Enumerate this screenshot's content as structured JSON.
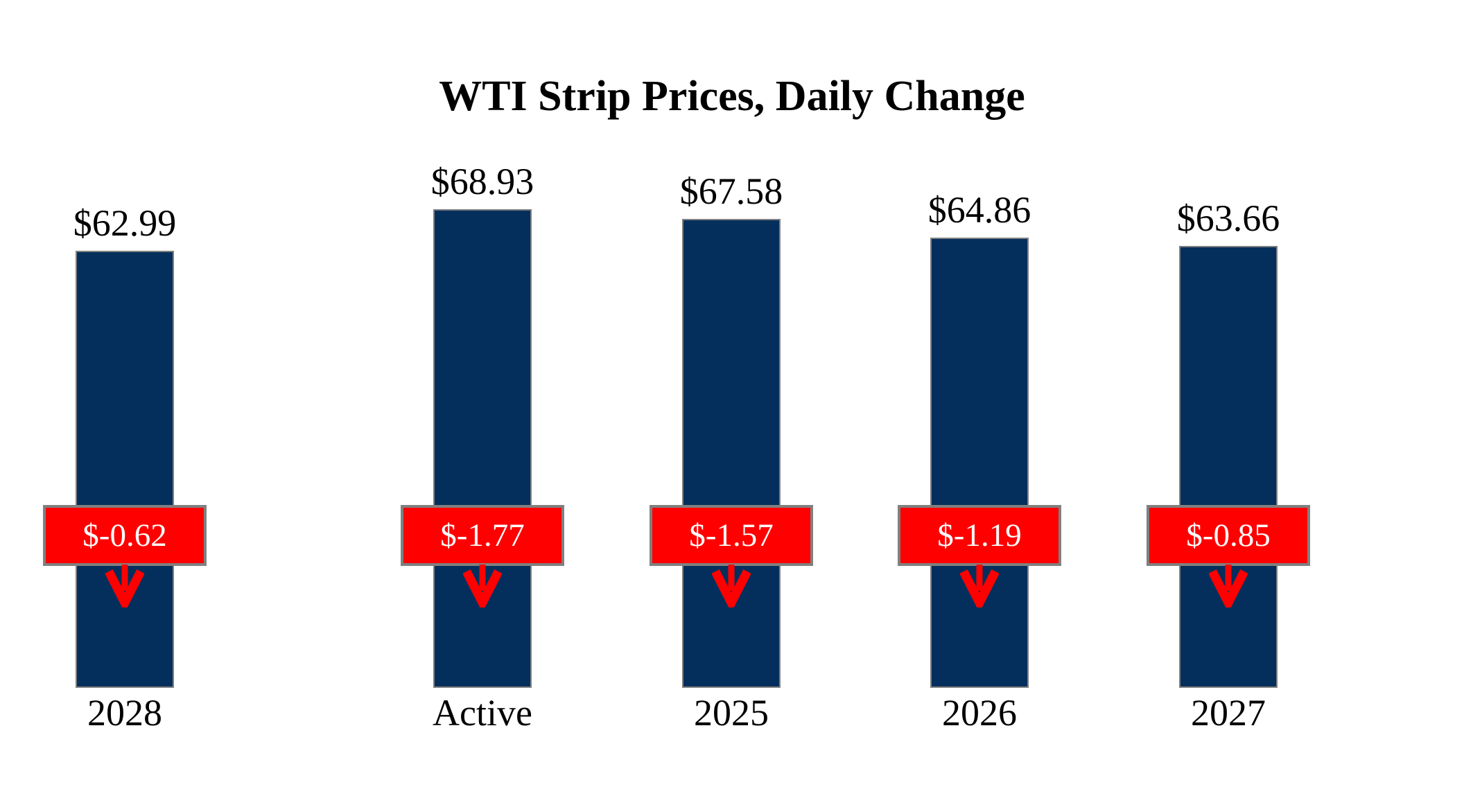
{
  "chart_data": {
    "type": "bar",
    "title": "WTI Strip Prices, Daily Change",
    "categories": [
      "Active",
      "2025",
      "2026",
      "2027",
      "2028"
    ],
    "series": [
      {
        "name": "Strip Price",
        "values": [
          68.93,
          67.58,
          64.86,
          63.66,
          62.99
        ]
      },
      {
        "name": "Daily Change",
        "values": [
          -1.77,
          -1.57,
          -1.19,
          -0.85,
          -0.62
        ]
      }
    ],
    "value_labels": [
      "$68.93",
      "$67.58",
      "$64.86",
      "$63.66",
      "$62.99"
    ],
    "change_labels": [
      "$-1.77",
      "$-1.57",
      "$-1.19",
      "$-0.85",
      "$-0.62"
    ],
    "ylim": [
      0,
      68.93
    ],
    "grid": false,
    "legend": false,
    "axes_shown": false,
    "colors": {
      "bar_fill": "#042F5C",
      "bar_border": "#808080",
      "badge_fill": "#FF0000",
      "badge_border": "#808080",
      "badge_text": "#FFFFFF",
      "arrow": "#FF0000",
      "text": "#000000",
      "background": "#FFFFFF"
    }
  }
}
